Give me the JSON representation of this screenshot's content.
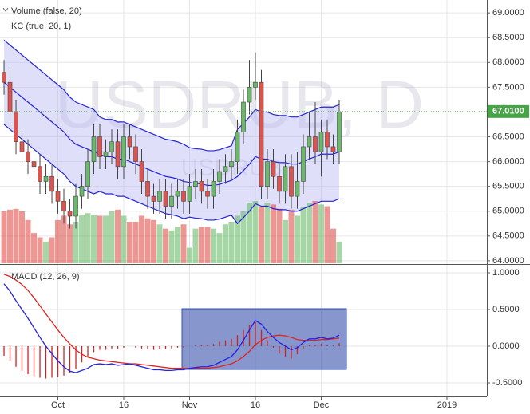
{
  "chart_data": [
    {
      "type": "candlestick",
      "watermark": "USDRUB, D",
      "watermark_subtitle": "USDRUB",
      "volume_label": "Volume (false, 20)",
      "kc_label": "KC (true, 20, 1)",
      "x": [
        0,
        1,
        2,
        3,
        4,
        5,
        6,
        7,
        8,
        9,
        10,
        11,
        12,
        13,
        14,
        15,
        16,
        17,
        18,
        19,
        20,
        21,
        22,
        23,
        24,
        25,
        26,
        27,
        28,
        29,
        30,
        31,
        32,
        33,
        34,
        35,
        36,
        37,
        38,
        39,
        40,
        41,
        42,
        43,
        44,
        45,
        46,
        47,
        48,
        49,
        50,
        51,
        52,
        53,
        54,
        55,
        56
      ],
      "xlim": [
        -0.67,
        80.67
      ],
      "xticks": [
        {
          "value": 9,
          "label": "Oct"
        },
        {
          "value": 20,
          "label": "16"
        },
        {
          "value": 31,
          "label": "Nov"
        },
        {
          "value": 42,
          "label": "16"
        },
        {
          "value": 53,
          "label": "Dec"
        },
        {
          "value": 74,
          "label": "2019"
        }
      ],
      "ylim": [
        63.95,
        69.26
      ],
      "yticks": [
        {
          "value": 64,
          "label": "64.0000"
        },
        {
          "value": 64.5,
          "label": "64.5000"
        },
        {
          "value": 65,
          "label": "65.0000"
        },
        {
          "value": 65.5,
          "label": "65.5000"
        },
        {
          "value": 66,
          "label": "66.0000"
        },
        {
          "value": 66.5,
          "label": "66.5000"
        },
        {
          "value": 67,
          "label": "67.0000"
        },
        {
          "value": 67.5,
          "label": "67.5000"
        },
        {
          "value": 68,
          "label": "68.0000"
        },
        {
          "value": 68.5,
          "label": "68.5000"
        },
        {
          "value": 69,
          "label": "69.0000"
        }
      ],
      "grid": true,
      "open": [
        67.8,
        67.6,
        67.0,
        66.4,
        66.2,
        66.0,
        65.9,
        65.6,
        65.7,
        65.4,
        65.2,
        65.0,
        64.9,
        65.3,
        65.5,
        66.0,
        66.5,
        66.1,
        66.2,
        66.4,
        65.9,
        66.5,
        66.3,
        66.0,
        65.6,
        65.3,
        65.2,
        65.4,
        65.1,
        65.3,
        65.4,
        65.2,
        65.5,
        65.6,
        65.4,
        65.3,
        65.6,
        65.8,
        65.9,
        66.0,
        66.6,
        67.2,
        67.5,
        67.6,
        65.5,
        66.0,
        65.7,
        65.4,
        65.9,
        65.3,
        65.6,
        66.3,
        66.5,
        66.2,
        66.6,
        66.3,
        66.2
      ],
      "high": [
        68.05,
        67.85,
        67.25,
        66.65,
        66.45,
        66.25,
        66.15,
        65.95,
        65.95,
        65.65,
        65.45,
        65.25,
        65.55,
        65.75,
        66.25,
        66.75,
        66.75,
        66.45,
        66.65,
        66.65,
        66.75,
        66.75,
        66.55,
        66.25,
        65.85,
        65.55,
        65.65,
        65.65,
        65.55,
        65.65,
        65.65,
        65.75,
        65.85,
        65.85,
        65.65,
        65.85,
        66.05,
        66.15,
        66.25,
        66.85,
        67.45,
        68.05,
        68.2,
        67.85,
        66.25,
        66.25,
        65.95,
        66.15,
        66.15,
        66.2,
        66.55,
        67.0,
        67.2,
        66.85,
        66.85,
        66.55,
        67.25
      ],
      "low": [
        67.35,
        66.75,
        66.15,
        65.95,
        65.75,
        65.65,
        65.35,
        65.35,
        65.15,
        64.95,
        64.75,
        64.65,
        64.65,
        65.05,
        65.25,
        65.75,
        65.85,
        65.85,
        65.95,
        65.65,
        65.65,
        66.05,
        65.75,
        65.35,
        65.05,
        64.95,
        64.95,
        64.85,
        64.85,
        65.05,
        64.95,
        64.95,
        65.25,
        65.15,
        65.05,
        65.05,
        65.35,
        65.55,
        65.65,
        65.75,
        66.35,
        66.95,
        67.25,
        65.25,
        65.25,
        65.45,
        65.15,
        65.15,
        65.05,
        65.05,
        65.35,
        66.05,
        65.95,
        65.7,
        66.05,
        65.95,
        65.95
      ],
      "close": [
        67.6,
        67.0,
        66.4,
        66.2,
        66.0,
        65.9,
        65.6,
        65.7,
        65.4,
        65.2,
        65.0,
        64.9,
        65.3,
        65.5,
        66.0,
        66.5,
        66.1,
        66.2,
        66.4,
        65.9,
        66.5,
        66.3,
        66.0,
        65.6,
        65.3,
        65.2,
        65.4,
        65.1,
        65.3,
        65.4,
        65.2,
        65.5,
        65.6,
        65.4,
        65.3,
        65.6,
        65.8,
        65.9,
        66.0,
        66.6,
        67.2,
        67.5,
        67.6,
        65.5,
        66.0,
        65.7,
        65.4,
        65.9,
        65.3,
        65.6,
        66.3,
        66.5,
        66.2,
        66.6,
        66.3,
        66.2,
        67.0
      ],
      "volume": [
        60,
        62,
        63,
        60,
        50,
        35,
        30,
        25,
        30,
        50,
        55,
        45,
        48,
        56,
        58,
        56,
        55,
        55,
        60,
        62,
        55,
        48,
        48,
        55,
        52,
        50,
        45,
        40,
        38,
        42,
        45,
        18,
        40,
        42,
        42,
        40,
        35,
        45,
        48,
        55,
        60,
        70,
        72,
        65,
        70,
        68,
        63,
        50,
        62,
        55,
        65,
        70,
        72,
        68,
        66,
        40,
        25
      ],
      "kc_upper": [
        68.45,
        68.35,
        68.25,
        68.15,
        68.05,
        67.95,
        67.85,
        67.75,
        67.65,
        67.55,
        67.45,
        67.3,
        67.2,
        67.15,
        67.1,
        67.05,
        66.9,
        66.85,
        66.85,
        66.8,
        66.8,
        66.75,
        66.7,
        66.65,
        66.6,
        66.55,
        66.5,
        66.45,
        66.43,
        66.4,
        66.35,
        66.28,
        66.26,
        66.25,
        66.22,
        66.22,
        66.24,
        66.28,
        66.32,
        66.65,
        66.77,
        66.9,
        67.05,
        67.0,
        67.0,
        66.95,
        66.93,
        66.93,
        66.9,
        66.9,
        66.95,
        67.0,
        67.05,
        67.1,
        67.1,
        67.1,
        67.15
      ],
      "kc_middle": [
        67.6,
        67.5,
        67.4,
        67.3,
        67.2,
        67.1,
        67.0,
        66.9,
        66.8,
        66.7,
        66.6,
        66.45,
        66.35,
        66.3,
        66.25,
        66.2,
        66.15,
        66.1,
        66.1,
        66.05,
        66.05,
        66.0,
        65.95,
        65.9,
        65.85,
        65.8,
        65.75,
        65.7,
        65.68,
        65.65,
        65.6,
        65.58,
        65.56,
        65.55,
        65.52,
        65.52,
        65.54,
        65.58,
        65.62,
        65.7,
        65.82,
        65.95,
        66.1,
        66.05,
        66.05,
        66.0,
        65.98,
        65.98,
        65.95,
        65.95,
        66.0,
        66.05,
        66.1,
        66.15,
        66.15,
        66.15,
        66.2
      ],
      "kc_lower": [
        66.75,
        66.65,
        66.55,
        66.45,
        66.35,
        66.25,
        66.15,
        66.05,
        65.95,
        65.85,
        65.75,
        65.6,
        65.5,
        65.45,
        65.4,
        65.35,
        65.4,
        65.35,
        65.35,
        65.3,
        65.3,
        65.25,
        65.2,
        65.15,
        65.1,
        65.05,
        65.0,
        64.95,
        64.93,
        64.9,
        64.85,
        64.88,
        64.86,
        64.85,
        64.82,
        64.82,
        64.84,
        64.88,
        64.92,
        64.75,
        64.87,
        65.0,
        65.15,
        65.1,
        65.1,
        65.05,
        65.03,
        65.03,
        65.0,
        65.0,
        65.05,
        65.1,
        65.15,
        65.2,
        65.2,
        65.2,
        65.25
      ],
      "last_price": {
        "value": 67.01,
        "label": "67.0100"
      },
      "up_color": "#6aba6a",
      "down_color": "#e0524c",
      "kc_color": "#2424d6",
      "band_color": "#b8b8f4",
      "last_price_color": "#47a447"
    },
    {
      "type": "macd",
      "label": "MACD (12, 26, 9)",
      "ylim": [
        -0.685,
        1.087
      ],
      "yticks": [
        {
          "value": -0.5,
          "label": "-0.5000"
        },
        {
          "value": 0,
          "label": "0.0000"
        },
        {
          "value": 0.5,
          "label": "0.5000"
        },
        {
          "value": 1,
          "label": "1.0000"
        }
      ],
      "macd": [
        0.85,
        0.75,
        0.62,
        0.5,
        0.38,
        0.25,
        0.12,
        0.0,
        -0.1,
        -0.2,
        -0.28,
        -0.34,
        -0.36,
        -0.33,
        -0.3,
        -0.25,
        -0.24,
        -0.25,
        -0.24,
        -0.26,
        -0.25,
        -0.24,
        -0.26,
        -0.28,
        -0.3,
        -0.32,
        -0.32,
        -0.33,
        -0.33,
        -0.32,
        -0.32,
        -0.3,
        -0.29,
        -0.28,
        -0.28,
        -0.26,
        -0.22,
        -0.18,
        -0.14,
        -0.05,
        0.08,
        0.22,
        0.35,
        0.3,
        0.2,
        0.12,
        0.05,
        0.0,
        -0.05,
        -0.02,
        0.05,
        0.1,
        0.1,
        0.12,
        0.1,
        0.11,
        0.15
      ],
      "signal": [
        0.98,
        0.95,
        0.9,
        0.84,
        0.76,
        0.66,
        0.55,
        0.44,
        0.33,
        0.22,
        0.12,
        0.03,
        -0.05,
        -0.11,
        -0.15,
        -0.17,
        -0.19,
        -0.2,
        -0.21,
        -0.22,
        -0.23,
        -0.24,
        -0.24,
        -0.25,
        -0.26,
        -0.27,
        -0.28,
        -0.29,
        -0.3,
        -0.3,
        -0.3,
        -0.3,
        -0.3,
        -0.3,
        -0.3,
        -0.29,
        -0.28,
        -0.26,
        -0.24,
        -0.2,
        -0.14,
        -0.07,
        0.02,
        0.08,
        0.12,
        0.14,
        0.15,
        0.14,
        0.12,
        0.09,
        0.08,
        0.08,
        0.08,
        0.09,
        0.09,
        0.1,
        0.11
      ],
      "histogram": [
        -0.13,
        -0.2,
        -0.28,
        -0.34,
        -0.38,
        -0.41,
        -0.43,
        -0.44,
        -0.43,
        -0.42,
        -0.4,
        -0.37,
        -0.31,
        -0.22,
        -0.15,
        -0.08,
        -0.05,
        -0.05,
        -0.03,
        -0.04,
        -0.02,
        0.0,
        -0.02,
        -0.03,
        -0.04,
        -0.05,
        -0.04,
        -0.04,
        -0.03,
        -0.02,
        -0.02,
        0.0,
        0.01,
        0.02,
        0.02,
        0.03,
        0.06,
        0.08,
        0.1,
        0.15,
        0.22,
        0.29,
        0.33,
        0.22,
        0.08,
        -0.02,
        -0.1,
        -0.14,
        -0.17,
        -0.11,
        -0.03,
        0.02,
        0.02,
        0.03,
        0.01,
        0.01,
        0.04
      ],
      "macd_color": "#2323e0",
      "signal_color": "#e0231f",
      "histogram_color": "#cc2222"
    }
  ]
}
